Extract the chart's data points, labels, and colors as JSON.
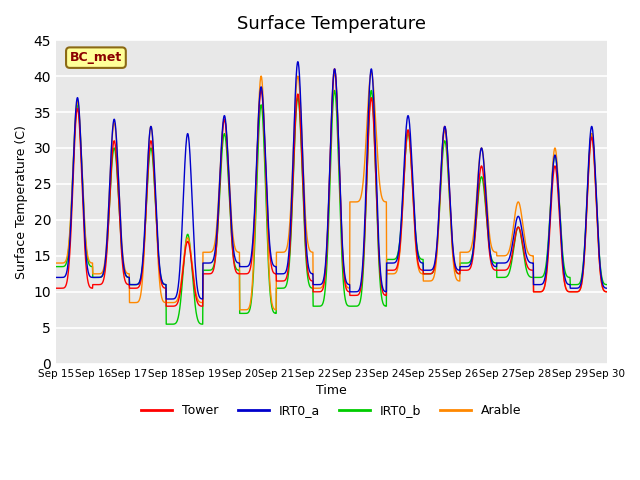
{
  "title": "Surface Temperature",
  "xlabel": "Time",
  "ylabel": "Surface Temperature (C)",
  "ylim": [
    0,
    45
  ],
  "yticks": [
    0,
    5,
    10,
    15,
    20,
    25,
    30,
    35,
    40,
    45
  ],
  "annotation": "BC_met",
  "bg_color": "#e8e8e8",
  "legend_labels": [
    "Tower",
    "IRT0_a",
    "IRT0_b",
    "Arable"
  ],
  "legend_colors": [
    "#ff0000",
    "#0000cc",
    "#00cc00",
    "#ff8800"
  ],
  "line_width": 1.0,
  "x_tick_labels": [
    "Sep 15",
    "Sep 16",
    "Sep 17",
    "Sep 18",
    "Sep 19",
    "Sep 20",
    "Sep 21",
    "Sep 22",
    "Sep 23",
    "Sep 24",
    "Sep 25",
    "Sep 26",
    "Sep 27",
    "Sep 28",
    "Sep 29",
    "Sep 30"
  ],
  "days": 15,
  "pts_per_day": 144,
  "peak_hour": 14.0,
  "min_hour": 5.5,
  "sharpness": 3.5,
  "daily_peaks": {
    "Tower": [
      35.5,
      31.0,
      31.0,
      17.0,
      34.0,
      38.0,
      37.5,
      41.0,
      37.0,
      32.5,
      33.0,
      27.5,
      19.0,
      27.5,
      31.5
    ],
    "IRT0_a": [
      37.0,
      34.0,
      33.0,
      32.0,
      34.5,
      38.5,
      42.0,
      41.0,
      41.0,
      34.5,
      33.0,
      30.0,
      20.5,
      29.0,
      33.0
    ],
    "IRT0_b": [
      36.0,
      30.0,
      30.0,
      18.0,
      32.0,
      36.0,
      37.0,
      38.0,
      38.0,
      32.0,
      31.0,
      26.0,
      19.0,
      29.0,
      32.0
    ],
    "Arable": [
      36.5,
      33.5,
      33.0,
      17.5,
      34.0,
      40.0,
      40.0,
      40.5,
      40.5,
      32.5,
      32.5,
      30.0,
      22.5,
      30.0,
      32.0
    ]
  },
  "daily_mins": {
    "Tower": [
      10.5,
      11.0,
      10.5,
      8.0,
      12.5,
      12.5,
      11.5,
      10.0,
      9.5,
      13.0,
      12.5,
      13.0,
      13.0,
      10.0,
      10.0
    ],
    "IRT0_a": [
      12.0,
      12.0,
      11.0,
      9.0,
      14.0,
      13.5,
      12.5,
      11.0,
      10.0,
      14.0,
      13.0,
      13.5,
      14.0,
      11.0,
      10.5
    ],
    "IRT0_b": [
      13.5,
      12.0,
      11.0,
      5.5,
      13.0,
      7.0,
      10.5,
      8.0,
      8.0,
      14.5,
      12.5,
      14.0,
      12.0,
      12.0,
      11.0
    ],
    "Arable": [
      14.0,
      12.5,
      8.5,
      8.5,
      15.5,
      7.5,
      15.5,
      10.5,
      22.5,
      12.5,
      11.5,
      15.5,
      15.0,
      10.0,
      10.0
    ]
  }
}
